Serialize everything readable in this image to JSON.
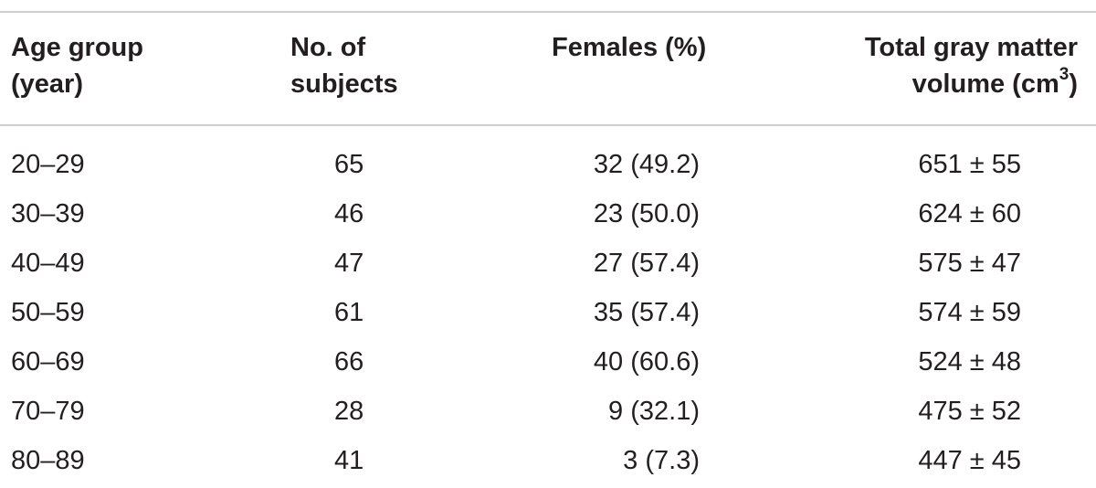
{
  "table": {
    "headers": {
      "age_line1": "Age group",
      "age_line2": "(year)",
      "n_line1": "No. of",
      "n_line2": "subjects",
      "fem_line1": "Females (%)",
      "gm_line1": "Total gray matter",
      "gm_line2_text": "volume (cm",
      "gm_line2_sup": "3",
      "gm_line2_close": ")"
    },
    "rows": [
      {
        "age": "20–29",
        "n": "65",
        "females": "32 (49.2)",
        "gm": "651 ± 55"
      },
      {
        "age": "30–39",
        "n": "46",
        "females": "23 (50.0)",
        "gm": "624 ± 60"
      },
      {
        "age": "40–49",
        "n": "47",
        "females": "27 (57.4)",
        "gm": "575 ± 47"
      },
      {
        "age": "50–59",
        "n": "61",
        "females": "35 (57.4)",
        "gm": "574 ± 59"
      },
      {
        "age": "60–69",
        "n": "66",
        "females": "40 (60.6)",
        "gm": "524 ± 48"
      },
      {
        "age": "70–79",
        "n": "28",
        "females": "9 (32.1)",
        "gm": "475 ± 52"
      },
      {
        "age": "80–89",
        "n": "41",
        "females": "3 (7.3)",
        "gm": "447 ± 45"
      }
    ]
  },
  "colors": {
    "text": "#231f20",
    "rule": "#cfcfcf"
  }
}
